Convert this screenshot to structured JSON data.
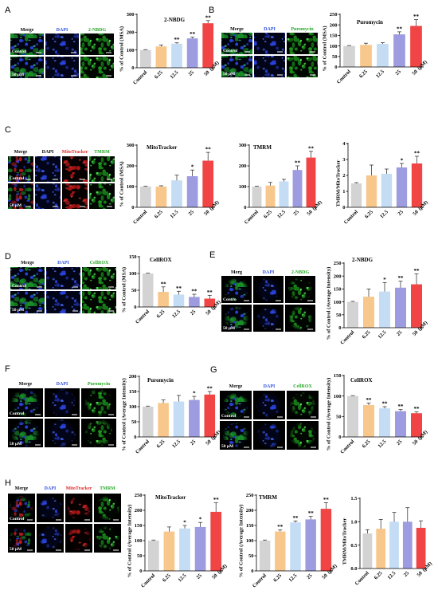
{
  "figure": {
    "panels": [
      {
        "letter": "A",
        "channels": [
          "Merge",
          "DAPI",
          "2-NBDG"
        ],
        "channel_colors": [
          "#000000",
          "#2f52e0",
          "#26a826"
        ],
        "rows": [
          "Control",
          "50 μM"
        ]
      },
      {
        "letter": "B",
        "channels": [
          "Merge",
          "DAPI",
          "Puromycin"
        ],
        "channel_colors": [
          "#000000",
          "#2f52e0",
          "#26a826"
        ],
        "rows": [
          "Control",
          "50 μM"
        ]
      },
      {
        "letter": "C",
        "channels": [
          "Merge",
          "DAPI",
          "MitoTracker",
          "TMRM"
        ],
        "channel_colors": [
          "#000000",
          "#000000",
          "#e02828",
          "#26a826"
        ],
        "rows": [
          "Control",
          "50 μM"
        ]
      },
      {
        "letter": "D",
        "channels": [
          "Merge",
          "DAPI",
          "CellROX"
        ],
        "channel_colors": [
          "#000000",
          "#2f52e0",
          "#26a826"
        ],
        "rows": [
          "Control",
          "50 μM"
        ]
      },
      {
        "letter": "E",
        "channels": [
          "Merg",
          "DAPI",
          "2-NBDG"
        ],
        "channel_colors": [
          "#000000",
          "#2f52e0",
          "#26a826"
        ],
        "rows": [
          "Contro",
          "50 μM"
        ]
      },
      {
        "letter": "F",
        "channels": [
          "Merge",
          "DAPI",
          "Puromycin"
        ],
        "channel_colors": [
          "#000000",
          "#2f52e0",
          "#26a826"
        ],
        "rows": [
          "Control",
          "50 μM"
        ]
      },
      {
        "letter": "G",
        "channels": [
          "Merge",
          "DAPI",
          "CellROX"
        ],
        "channel_colors": [
          "#000000",
          "#2f52e0",
          "#26a826"
        ],
        "rows": [
          "Control",
          "50 μM"
        ]
      },
      {
        "letter": "H",
        "channels": [
          "Merge",
          "DAPI",
          "MitoTracker",
          "TMRM"
        ],
        "channel_colors": [
          "#000000",
          "#2f52e0",
          "#e02828",
          "#26a826"
        ],
        "rows": [
          "Control",
          "50 μM"
        ]
      }
    ]
  },
  "colors": {
    "bars": [
      "#d3d3d3",
      "#f7c78c",
      "#c4dcf4",
      "#9d9ce0",
      "#f14444"
    ],
    "axis": "#000000"
  },
  "chart_data": [
    {
      "type": "bar",
      "title": "2-NBDG",
      "ylabel": "% of Control (MSA)",
      "categories": [
        "Control",
        "6.25",
        "12.5",
        "25",
        "50"
      ],
      "xunit": "(μM)",
      "values": [
        100,
        120,
        135,
        165,
        250
      ],
      "errors": [
        2,
        8,
        5,
        7,
        15
      ],
      "significance": [
        "",
        "",
        "**",
        "**",
        "**"
      ],
      "ylim": [
        0,
        300
      ],
      "yticks": [
        "0",
        "100",
        "200",
        "300"
      ]
    },
    {
      "type": "bar",
      "title": "Puromycin",
      "ylabel": "% of Control (MSA)",
      "categories": [
        "Control",
        "6.25",
        "12.5",
        "25",
        "50"
      ],
      "xunit": "(μM)",
      "values": [
        100,
        105,
        110,
        155,
        195
      ],
      "errors": [
        2,
        8,
        5,
        12,
        30
      ],
      "significance": [
        "",
        "",
        "",
        "**",
        "**"
      ],
      "ylim": [
        0,
        250
      ],
      "yticks": [
        "0",
        "50",
        "100",
        "150",
        "200",
        "250"
      ]
    },
    {
      "type": "bar",
      "title": "MitoTracker",
      "ylabel": "% of Control (MSA)",
      "categories": [
        "Control",
        "6.25",
        "12.5",
        "25",
        "50"
      ],
      "xunit": "(μM)",
      "values": [
        100,
        100,
        130,
        150,
        225
      ],
      "errors": [
        2,
        4,
        25,
        30,
        40
      ],
      "significance": [
        "",
        "",
        "",
        "*",
        "**"
      ],
      "ylim": [
        0,
        300
      ],
      "yticks": [
        "0",
        "100",
        "200",
        "300"
      ]
    },
    {
      "type": "bar",
      "title": "TMRM",
      "categories": [
        "Control",
        "6.25",
        "12.5",
        "25",
        "50"
      ],
      "xunit": "(μM)",
      "values": [
        100,
        105,
        125,
        180,
        240
      ],
      "errors": [
        2,
        15,
        10,
        20,
        30
      ],
      "significance": [
        "",
        "",
        "",
        "**",
        "**"
      ],
      "ylim": [
        0,
        300
      ],
      "yticks": [
        "0",
        "100",
        "200",
        "300"
      ]
    },
    {
      "type": "bar",
      "ylabel": "TMRM/MitoTracker",
      "categories": [
        "Control",
        "6.25",
        "12.5",
        "25",
        "50"
      ],
      "xunit": "(μM)",
      "values": [
        1.5,
        2.0,
        2.1,
        2.5,
        2.75
      ],
      "errors": [
        0.05,
        0.65,
        0.3,
        0.25,
        0.45
      ],
      "significance": [
        "",
        "",
        "",
        "*",
        "**"
      ],
      "ylim": [
        0,
        4
      ],
      "yticks": [
        "0",
        "1",
        "2",
        "3",
        "4"
      ]
    },
    {
      "type": "bar",
      "title": "CellROX",
      "ylabel": "% of Control (MSA)",
      "categories": [
        "Control",
        "6.25",
        "12.5",
        "25",
        "50"
      ],
      "xunit": "(μM)",
      "values": [
        100,
        45,
        37,
        30,
        25
      ],
      "errors": [
        1,
        15,
        10,
        8,
        10
      ],
      "significance": [
        "",
        "**",
        "**",
        "**",
        "**"
      ],
      "ylim": [
        0,
        150
      ],
      "yticks": [
        "0",
        "50",
        "100",
        "150"
      ]
    },
    {
      "type": "bar",
      "title": "2-NBDG",
      "ylabel": "% of Control (Average Intensity)",
      "categories": [
        "Control",
        "6.25",
        "12.5",
        "25",
        "50"
      ],
      "xunit": "(μM)",
      "values": [
        100,
        120,
        140,
        155,
        168
      ],
      "errors": [
        2,
        30,
        35,
        25,
        40
      ],
      "significance": [
        "",
        "",
        "*",
        "**",
        "**"
      ],
      "ylim": [
        0,
        250
      ],
      "yticks": [
        "0",
        "50",
        "100",
        "150",
        "200",
        "250"
      ]
    },
    {
      "type": "bar",
      "title": "Puromycin",
      "ylabel": "% of Control (Average Intensity)",
      "categories": [
        "Control",
        "6.25",
        "12.5",
        "25",
        "50"
      ],
      "xunit": "(μM)",
      "values": [
        100,
        112,
        117,
        122,
        140
      ],
      "errors": [
        2,
        10,
        20,
        12,
        10
      ],
      "significance": [
        "",
        "",
        "",
        "*",
        "**"
      ],
      "ylim": [
        0,
        200
      ],
      "yticks": [
        "0",
        "50",
        "100",
        "150",
        "200"
      ]
    },
    {
      "type": "bar",
      "title": "CellROX",
      "ylabel": "% of Control (Average Intensity)",
      "categories": [
        "Control",
        "6.25",
        "12.5",
        "25",
        "50"
      ],
      "xunit": "(μM)",
      "values": [
        100,
        78,
        70,
        63,
        58
      ],
      "errors": [
        1,
        5,
        4,
        4,
        3
      ],
      "significance": [
        "",
        "**",
        "**",
        "**",
        "**"
      ],
      "ylim": [
        0,
        150
      ],
      "yticks": [
        "0",
        "50",
        "100",
        "150"
      ]
    },
    {
      "type": "bar",
      "title": "MitoTracker",
      "ylabel": "% of Control (Average Intensity)",
      "categories": [
        "Control",
        "6.25",
        "12.5",
        "25",
        "50"
      ],
      "xunit": "(μM)",
      "values": [
        100,
        130,
        140,
        145,
        195
      ],
      "errors": [
        2,
        15,
        10,
        15,
        30
      ],
      "significance": [
        "",
        "",
        "*",
        "*",
        "**"
      ],
      "ylim": [
        0,
        250
      ],
      "yticks": [
        "0",
        "50",
        "100",
        "150",
        "200",
        "250"
      ]
    },
    {
      "type": "bar",
      "title": "TMRM",
      "ylabel": "% of Control (Average Intensity)",
      "categories": [
        "Control",
        "6.25",
        "12.5",
        "25",
        "50"
      ],
      "xunit": "(μM)",
      "values": [
        100,
        130,
        160,
        170,
        205
      ],
      "errors": [
        2,
        5,
        5,
        10,
        20
      ],
      "significance": [
        "",
        "**",
        "**",
        "**",
        "**"
      ],
      "ylim": [
        0,
        250
      ],
      "yticks": [
        "0",
        "50",
        "100",
        "150",
        "200",
        "250"
      ]
    },
    {
      "type": "bar",
      "ylabel": "TMRM/MitoTracker",
      "categories": [
        "Control",
        "6.25",
        "12.5",
        "25",
        "50"
      ],
      "xunit": "(μM)",
      "values": [
        0.75,
        0.85,
        1.0,
        1.0,
        0.87
      ],
      "errors": [
        0.08,
        0.2,
        0.2,
        0.3,
        0.15
      ],
      "significance": [
        "",
        "",
        "",
        "",
        ""
      ],
      "ylim": [
        0,
        1.5
      ],
      "yticks": [
        "0.0",
        "0.5",
        "1.0",
        "1.5"
      ]
    }
  ]
}
